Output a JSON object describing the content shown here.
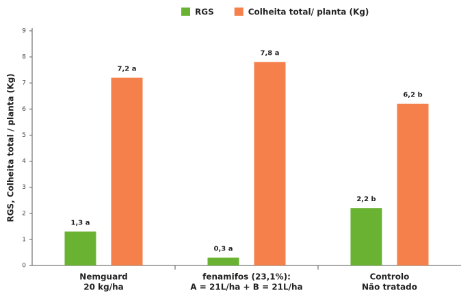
{
  "chart_data": {
    "type": "bar",
    "y_label": "RGS, Colheita total / planta (Kg)",
    "categories": [
      [
        "Nemguard",
        "20 kg/ha"
      ],
      [
        "fenamifos (23,1%):",
        "A = 21L/ha + B = 21L/ha"
      ],
      [
        "Controlo",
        "Não tratado"
      ]
    ],
    "series": [
      {
        "name": "RGS",
        "color": "#6ab332",
        "values": [
          1.3,
          0.3,
          2.2
        ],
        "value_labels": [
          "1,3 a",
          "0,3 a",
          "2,2 b"
        ]
      },
      {
        "name": "Colheita total/ planta (Kg)",
        "color": "#f5804b",
        "values": [
          7.2,
          7.8,
          6.2
        ],
        "value_labels": [
          "7,2 a",
          "7,8 a",
          "6,2 b"
        ]
      }
    ],
    "ylim": [
      0,
      9
    ],
    "yticks": [
      0,
      1,
      2,
      3,
      4,
      5,
      6,
      7,
      8,
      9
    ],
    "grid": false,
    "legend": "top"
  }
}
